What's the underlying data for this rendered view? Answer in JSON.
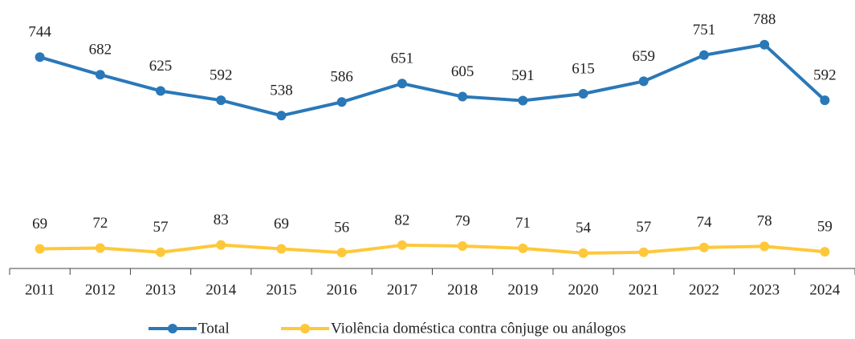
{
  "chart_data": {
    "type": "line",
    "categories": [
      "2011",
      "2012",
      "2013",
      "2014",
      "2015",
      "2016",
      "2017",
      "2018",
      "2019",
      "2020",
      "2021",
      "2022",
      "2023",
      "2024"
    ],
    "series": [
      {
        "name": "Total",
        "color": "#2a78b8",
        "values": [
          744,
          682,
          625,
          592,
          538,
          586,
          651,
          605,
          591,
          615,
          659,
          751,
          788,
          592
        ]
      },
      {
        "name": "Violência doméstica contra cônjuge ou análogos",
        "color": "#fec83a",
        "values": [
          69,
          72,
          57,
          83,
          69,
          56,
          82,
          79,
          71,
          54,
          57,
          74,
          78,
          59
        ]
      }
    ],
    "ylim": [
      0,
      900
    ]
  }
}
